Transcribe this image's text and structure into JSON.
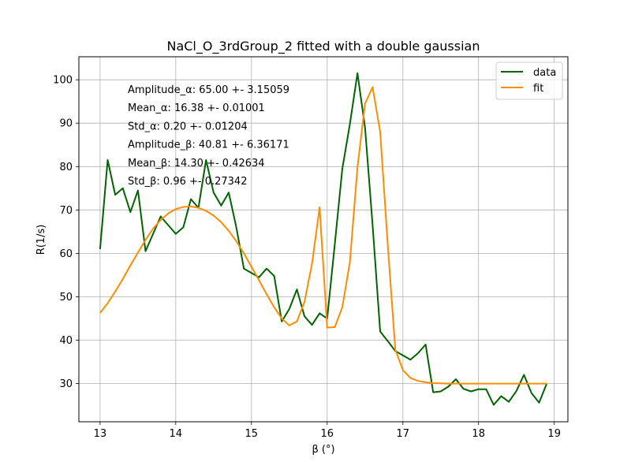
{
  "chart_data": {
    "type": "line",
    "title": "NaCl_O_3rdGroup_2 fitted with a double gaussian",
    "xlabel": "β (°)",
    "ylabel": "R(1/s)",
    "xlim": [
      12.72,
      19.18
    ],
    "ylim": [
      21.2,
      105.3
    ],
    "xticks": [
      13,
      14,
      15,
      16,
      17,
      18,
      19
    ],
    "yticks": [
      30,
      40,
      50,
      60,
      70,
      80,
      90,
      100
    ],
    "grid": true,
    "legend": "top-right",
    "series": [
      {
        "name": "data",
        "color": "#006400",
        "x": [
          13.0,
          13.1,
          13.2,
          13.3,
          13.4,
          13.5,
          13.6,
          13.7,
          13.8,
          13.9,
          14.0,
          14.1,
          14.2,
          14.3,
          14.4,
          14.5,
          14.6,
          14.7,
          14.8,
          14.9,
          15.0,
          15.1,
          15.2,
          15.3,
          15.4,
          15.5,
          15.6,
          15.7,
          15.8,
          15.9,
          16.0,
          16.1,
          16.2,
          16.3,
          16.4,
          16.5,
          16.6,
          16.7,
          16.8,
          16.9,
          17.0,
          17.1,
          17.2,
          17.3,
          17.4,
          17.5,
          17.6,
          17.7,
          17.8,
          17.9,
          18.0,
          18.1,
          18.2,
          18.3,
          18.4,
          18.5,
          18.6,
          18.7,
          18.8,
          18.9
        ],
        "values": [
          61.0,
          81.5,
          73.5,
          75.0,
          69.5,
          74.5,
          60.5,
          64.5,
          68.5,
          66.5,
          64.5,
          66.0,
          72.5,
          70.5,
          81.5,
          74.0,
          71.0,
          74.0,
          66.0,
          56.5,
          55.5,
          54.5,
          56.5,
          54.8,
          44.3,
          47.2,
          51.7,
          45.5,
          43.5,
          46.2,
          45.0,
          62.0,
          79.5,
          89.8,
          101.5,
          89.0,
          66.5,
          42.0,
          39.8,
          37.5,
          36.5,
          35.5,
          37.0,
          39.0,
          28.0,
          28.2,
          29.3,
          31.0,
          28.8,
          28.2,
          28.7,
          28.7,
          25.1,
          27.1,
          25.8,
          28.3,
          32.0,
          27.8,
          25.6,
          30.0
        ]
      },
      {
        "name": "fit",
        "color": "#ff8c00",
        "x": [
          13.0,
          13.1,
          13.2,
          13.3,
          13.4,
          13.5,
          13.6,
          13.7,
          13.8,
          13.9,
          14.0,
          14.1,
          14.2,
          14.3,
          14.4,
          14.5,
          14.6,
          14.7,
          14.8,
          14.9,
          15.0,
          15.1,
          15.2,
          15.3,
          15.4,
          15.5,
          15.6,
          15.7,
          15.8,
          15.9,
          16.0,
          16.1,
          16.2,
          16.3,
          16.4,
          16.5,
          16.6,
          16.7,
          16.8,
          16.9,
          17.0,
          17.1,
          17.2,
          17.3,
          17.4,
          17.5,
          17.6,
          17.7,
          17.8,
          17.9,
          18.0,
          18.1,
          18.2,
          18.3,
          18.4,
          18.5,
          18.6,
          18.7,
          18.8,
          18.9
        ],
        "values": [
          46.3,
          48.5,
          51.2,
          54.1,
          57.2,
          60.2,
          63.1,
          65.7,
          67.7,
          69.2,
          70.2,
          70.7,
          70.8,
          70.5,
          69.8,
          68.7,
          67.2,
          65.2,
          62.8,
          60.0,
          56.9,
          53.8,
          50.6,
          47.6,
          45.0,
          43.4,
          44.3,
          48.8,
          57.6,
          70.6,
          42.9,
          43.0,
          47.6,
          58.0,
          79.8,
          94.5,
          98.3,
          88.0,
          62.0,
          37.8,
          33.1,
          31.3,
          30.6,
          30.3,
          30.1,
          30.05,
          30.0,
          30.0,
          30.0,
          30.0,
          30.0,
          30.0,
          30.0,
          30.0,
          30.0,
          30.0,
          30.0,
          30.0,
          30.0,
          30.0
        ]
      }
    ],
    "annotations": [
      "Amplitude_α: 65.00 +- 3.15059",
      "Mean_α: 16.38 +- 0.01001",
      "Std_α: 0.20 +- 0.01204",
      "Amplitude_β: 40.81 +- 6.36171",
      "Mean_β: 14.30 +- 0.42634",
      "Std_β: 0.96 +- 0.27342"
    ]
  }
}
